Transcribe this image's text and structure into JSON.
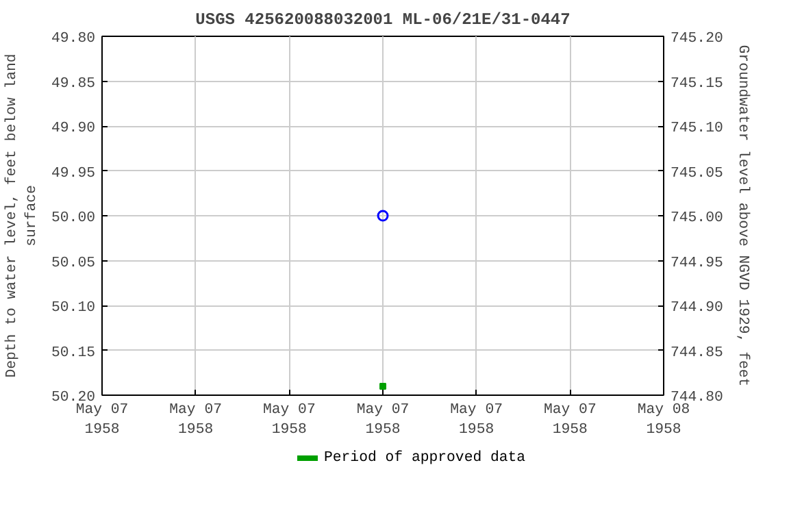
{
  "chart_data": {
    "type": "scatter",
    "title": "USGS 425620088032001 ML-06/21E/31-0447",
    "ylabel": "Depth to water level, feet below land\nsurface",
    "y2label": "Groundwater level above NGVD 1929, feet",
    "series": [
      {
        "marker": "circle",
        "color": "#0000ff",
        "x": [
          "1958-05-07T12:00"
        ],
        "values": [
          50.0
        ]
      },
      {
        "marker": "square",
        "name": "Period of approved data",
        "color": "#00a000",
        "x": [
          "1958-05-07T12:00"
        ],
        "values": [
          50.19
        ]
      }
    ],
    "xlim": [
      "1958-05-07T00:00",
      "1958-05-08T00:00"
    ],
    "xticks": [
      {
        "value": "1958-05-07T00:00",
        "label": "May 07\n1958"
      },
      {
        "value": "1958-05-07T04:00",
        "label": "May 07\n1958"
      },
      {
        "value": "1958-05-07T08:00",
        "label": "May 07\n1958"
      },
      {
        "value": "1958-05-07T12:00",
        "label": "May 07\n1958"
      },
      {
        "value": "1958-05-07T16:00",
        "label": "May 07\n1958"
      },
      {
        "value": "1958-05-07T20:00",
        "label": "May 07\n1958"
      },
      {
        "value": "1958-05-08T00:00",
        "label": "May 08\n1958"
      }
    ],
    "ylim": [
      50.2,
      49.8
    ],
    "yticks": [
      {
        "value": 49.8,
        "label": "49.80"
      },
      {
        "value": 49.85,
        "label": "49.85"
      },
      {
        "value": 49.9,
        "label": "49.90"
      },
      {
        "value": 49.95,
        "label": "49.95"
      },
      {
        "value": 50.0,
        "label": "50.00"
      },
      {
        "value": 50.05,
        "label": "50.05"
      },
      {
        "value": 50.1,
        "label": "50.10"
      },
      {
        "value": 50.15,
        "label": "50.15"
      },
      {
        "value": 50.2,
        "label": "50.20"
      }
    ],
    "y2lim": [
      744.8,
      745.2
    ],
    "y2ticks": [
      {
        "value": 744.8,
        "label": "744.80"
      },
      {
        "value": 744.85,
        "label": "744.85"
      },
      {
        "value": 744.9,
        "label": "744.90"
      },
      {
        "value": 744.95,
        "label": "744.95"
      },
      {
        "value": 745.0,
        "label": "745.00"
      },
      {
        "value": 745.05,
        "label": "745.05"
      },
      {
        "value": 745.1,
        "label": "745.10"
      },
      {
        "value": 745.15,
        "label": "745.15"
      },
      {
        "value": 745.2,
        "label": "745.20"
      }
    ],
    "grid": true,
    "legend": "bottom"
  }
}
